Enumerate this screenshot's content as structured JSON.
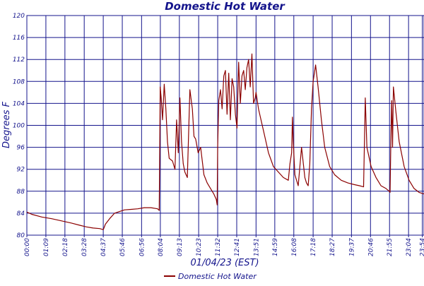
{
  "chart_data": {
    "type": "line",
    "title": "Domestic Hot Water",
    "xlabel": "01/04/23 (EST)",
    "ylabel": "Degrees F",
    "ylim": [
      80,
      120
    ],
    "yticks": [
      80,
      84,
      88,
      92,
      96,
      100,
      104,
      108,
      112,
      116,
      120
    ],
    "ytick_labels": [
      "80",
      "84",
      "88",
      "92",
      "96",
      "100",
      "104",
      "108",
      "112",
      "116",
      "120"
    ],
    "xlim_hours": [
      0,
      24
    ],
    "xticks_hours": [
      0,
      1.15,
      2.3,
      3.467,
      4.617,
      5.767,
      6.933,
      8.067,
      9.217,
      10.383,
      11.533,
      12.683,
      13.85,
      14.983,
      16.133,
      17.3,
      18.45,
      19.617,
      20.767,
      21.917,
      23.067,
      23.9
    ],
    "xtick_labels": [
      "00:00",
      "01:09",
      "02:18",
      "03:28",
      "04:37",
      "05:46",
      "06:56",
      "08:04",
      "09:13",
      "10:23",
      "11:32",
      "12:41",
      "13:51",
      "14:59",
      "16:08",
      "17:18",
      "18:27",
      "19:37",
      "20:46",
      "21:55",
      "23:04",
      "23:54"
    ],
    "grid": true,
    "legend_position": "bottom-center",
    "colors": {
      "grid": "#14148c",
      "line": "#8b0000",
      "text": "#14148c"
    },
    "series": [
      {
        "name": "Domestic Hot Water",
        "x": [
          0,
          0.3,
          0.9,
          1.5,
          2.1,
          2.7,
          3.2,
          3.6,
          4.0,
          4.4,
          4.62,
          4.75,
          5.0,
          5.3,
          5.6,
          5.9,
          6.3,
          6.7,
          7.1,
          7.5,
          7.9,
          8.0,
          8.03,
          8.06,
          8.12,
          8.2,
          8.3,
          8.4,
          8.5,
          8.6,
          8.8,
          8.95,
          9.05,
          9.15,
          9.25,
          9.35,
          9.45,
          9.55,
          9.7,
          9.85,
          10.0,
          10.1,
          10.2,
          10.35,
          10.5,
          10.7,
          10.9,
          11.1,
          11.3,
          11.45,
          11.5,
          11.53,
          11.6,
          11.7,
          11.8,
          11.9,
          12.0,
          12.1,
          12.2,
          12.3,
          12.4,
          12.5,
          12.6,
          12.7,
          12.8,
          12.9,
          13.0,
          13.1,
          13.2,
          13.3,
          13.4,
          13.5,
          13.6,
          13.7,
          13.8,
          13.85,
          13.9,
          14.0,
          14.3,
          14.6,
          14.9,
          15.2,
          15.5,
          15.8,
          15.9,
          16.0,
          16.05,
          16.1,
          16.2,
          16.4,
          16.6,
          16.8,
          16.9,
          17.0,
          17.1,
          17.2,
          17.3,
          17.45,
          17.6,
          17.8,
          18.0,
          18.3,
          18.6,
          19.0,
          19.4,
          19.8,
          20.1,
          20.35,
          20.45,
          20.55,
          20.8,
          21.1,
          21.4,
          21.7,
          21.9,
          21.95,
          22.0,
          22.05,
          22.1,
          22.15,
          22.3,
          22.5,
          22.8,
          23.1,
          23.4,
          23.7,
          24.0
        ],
        "y": [
          84.2,
          83.8,
          83.3,
          83.0,
          82.6,
          82.2,
          81.8,
          81.5,
          81.3,
          81.2,
          81.0,
          82.0,
          83.0,
          84.0,
          84.3,
          84.6,
          84.7,
          84.8,
          85.0,
          85.0,
          84.8,
          84.5,
          95.0,
          107.0,
          105.0,
          101.0,
          107.5,
          103.0,
          97.0,
          94.0,
          93.5,
          92.0,
          101.0,
          95.0,
          105.0,
          97.0,
          93.0,
          91.5,
          90.5,
          106.5,
          103.0,
          98.0,
          97.5,
          95.0,
          96.0,
          91.0,
          89.5,
          88.5,
          87.5,
          86.5,
          85.5,
          96.0,
          104.5,
          106.5,
          103.0,
          109.0,
          110.0,
          102.0,
          109.5,
          101.0,
          108.5,
          107.0,
          102.0,
          99.5,
          111.5,
          104.0,
          109.0,
          110.0,
          106.5,
          110.5,
          112.0,
          107.0,
          113.0,
          104.0,
          105.0,
          106.0,
          105.0,
          103.0,
          99.0,
          95.0,
          92.5,
          91.5,
          90.5,
          90.0,
          93.0,
          95.0,
          101.5,
          97.0,
          91.0,
          89.0,
          96.0,
          90.5,
          89.5,
          89.0,
          93.0,
          103.0,
          108.0,
          111.0,
          107.0,
          101.0,
          96.0,
          92.5,
          91.0,
          90.0,
          89.5,
          89.2,
          89.0,
          88.8,
          105.0,
          96.0,
          92.5,
          90.5,
          89.0,
          88.5,
          88.0,
          87.8,
          98.0,
          104.5,
          96.0,
          107.0,
          102.5,
          97.0,
          92.5,
          90.0,
          88.5,
          87.8,
          87.5
        ]
      }
    ]
  }
}
